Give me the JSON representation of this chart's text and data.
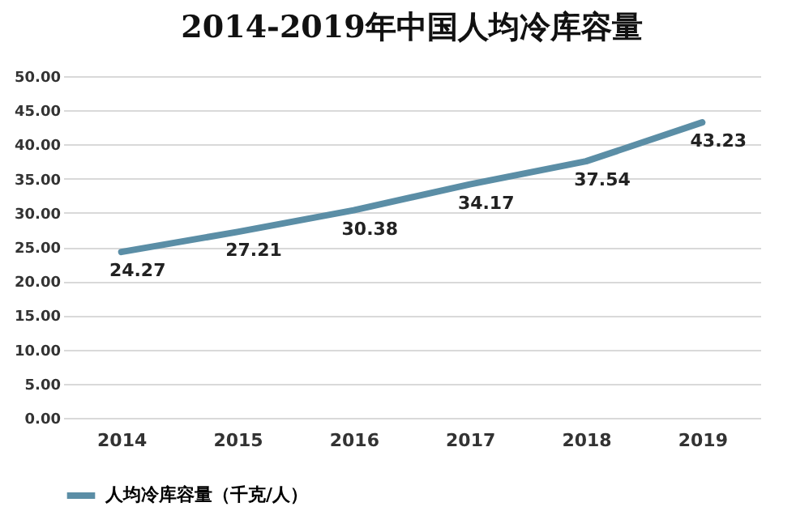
{
  "chart_data": {
    "type": "line",
    "title": "2014-2019年中国人均冷库容量",
    "categories": [
      "2014",
      "2015",
      "2016",
      "2017",
      "2018",
      "2019"
    ],
    "series": [
      {
        "name": "人均冷库容量（千克/人）",
        "color": "#5b8ea6",
        "values": [
          24.27,
          27.21,
          30.38,
          34.17,
          37.54,
          43.23
        ]
      }
    ],
    "ylim": [
      0,
      50
    ],
    "yticks": [
      {
        "value": 0,
        "label": "0.00"
      },
      {
        "value": 5,
        "label": "5.00"
      },
      {
        "value": 10,
        "label": "10.00"
      },
      {
        "value": 15,
        "label": "15.00"
      },
      {
        "value": 20,
        "label": "20.00"
      },
      {
        "value": 25,
        "label": "25.00"
      },
      {
        "value": 30,
        "label": "30.00"
      },
      {
        "value": 35,
        "label": "35.00"
      },
      {
        "value": 40,
        "label": "40.00"
      },
      {
        "value": 45,
        "label": "45.00"
      },
      {
        "value": 50,
        "label": "50.00"
      }
    ],
    "grid": "y",
    "legend": "bottom",
    "data_labels": true,
    "marker": "none",
    "line_style": "solid"
  }
}
